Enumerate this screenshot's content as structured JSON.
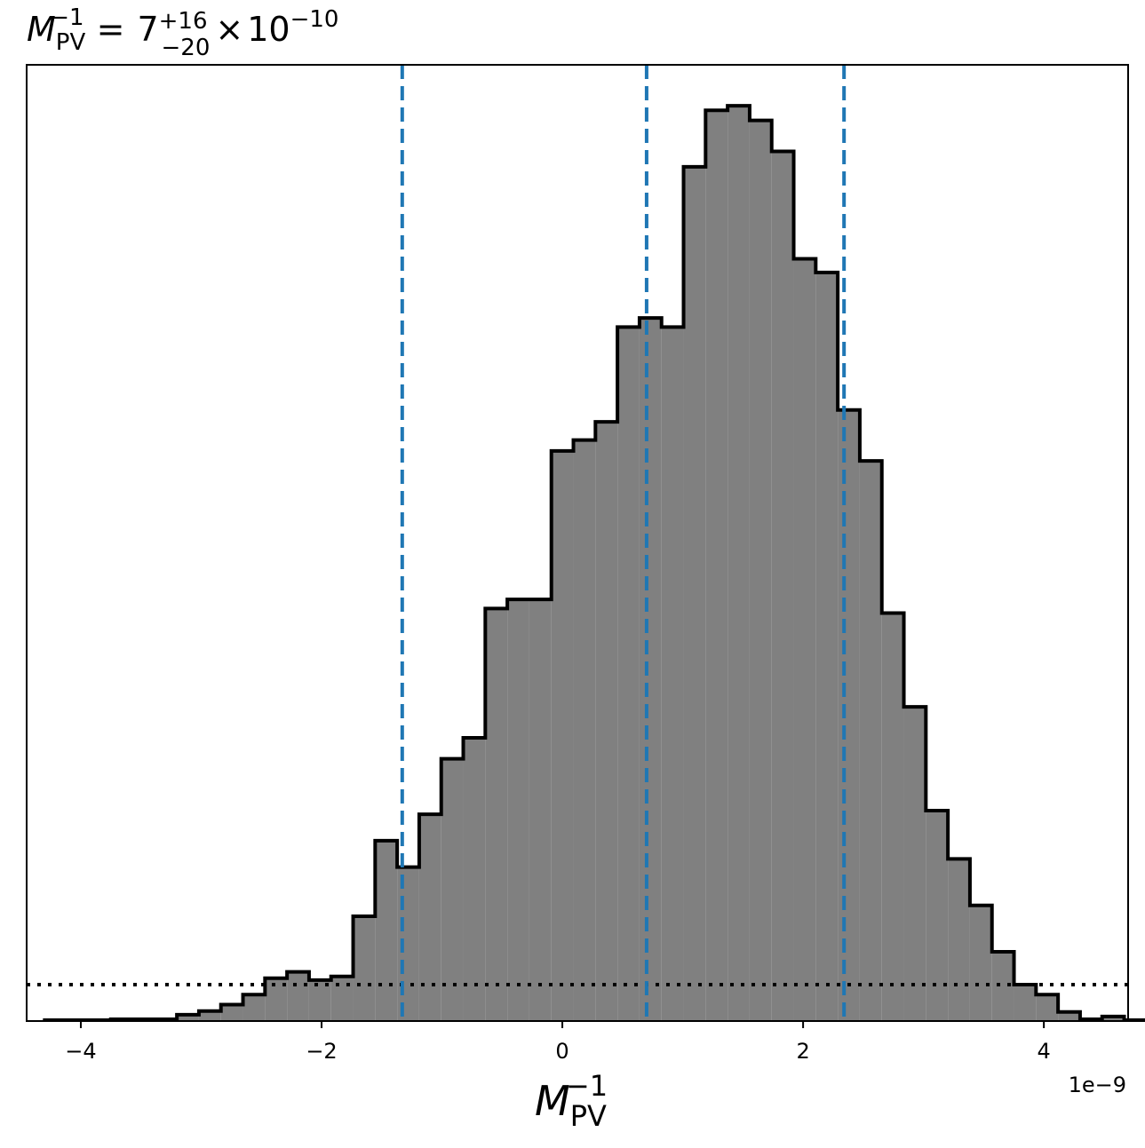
{
  "chart_data": {
    "type": "histogram",
    "title": {
      "symbol": "M",
      "sub": "PV",
      "sup": "−1",
      "equals": "=",
      "median": "7",
      "plus": "+16",
      "minus": "−20",
      "times": "×",
      "base": "10",
      "exponent": "−10"
    },
    "xlabel": {
      "symbol": "M",
      "sub": "PV",
      "sup": "−1"
    },
    "x_offset_label": "1e−9",
    "xlim": [
      -4.45,
      4.7
    ],
    "ylim": [
      0,
      1.05
    ],
    "xticks": [
      {
        "value": -4,
        "label": "−4"
      },
      {
        "value": -2,
        "label": "−2"
      },
      {
        "value": 0,
        "label": "0"
      },
      {
        "value": 2,
        "label": "2"
      },
      {
        "value": 4,
        "label": "4"
      }
    ],
    "bin_width": 0.183,
    "bins_start": -4.3,
    "counts": [
      0.001,
      0.001,
      0.001,
      0.002,
      0.002,
      0.002,
      0.007,
      0.011,
      0.018,
      0.029,
      0.047,
      0.054,
      0.045,
      0.049,
      0.115,
      0.198,
      0.169,
      0.227,
      0.288,
      0.311,
      0.453,
      0.463,
      0.463,
      0.626,
      0.638,
      0.658,
      0.762,
      0.772,
      0.762,
      0.938,
      1.0,
      1.005,
      0.989,
      0.955,
      0.837,
      0.822,
      0.671,
      0.615,
      0.448,
      0.345,
      0.231,
      0.178,
      0.127,
      0.076,
      0.04,
      0.029,
      0.01,
      0.002,
      0.005,
      0.001,
      0.001
    ],
    "quantile_lines": [
      -1.33,
      0.7,
      2.34
    ],
    "quantile_color": "#1f77b4",
    "reference_level": 0.04,
    "fill_color": "#808080",
    "edge_color": "#000000"
  }
}
